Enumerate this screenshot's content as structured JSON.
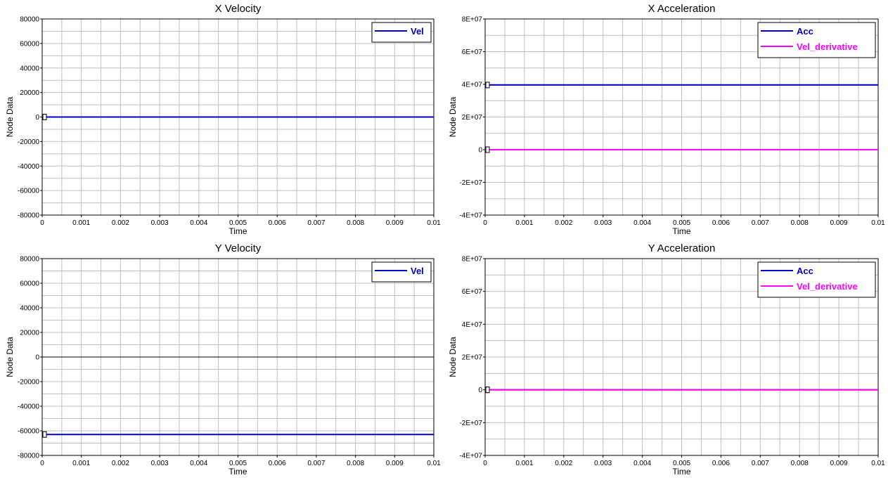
{
  "colors": {
    "blue": "#0000cc",
    "magenta": "#ff00ff",
    "grid": "#bfbfbf",
    "zero": "#000000"
  },
  "chart_data": [
    {
      "type": "line",
      "title": "X Velocity",
      "xlabel": "Time",
      "ylabel": "Node Data",
      "xlim": [
        0,
        0.01
      ],
      "ylim": [
        -80000,
        80000
      ],
      "xticks": [
        0,
        0.001,
        0.002,
        0.003,
        0.004,
        0.005,
        0.006,
        0.007,
        0.008,
        0.009,
        0.01
      ],
      "xtick_labels": [
        "0",
        "0.001",
        "0.002",
        "0.003",
        "0.004",
        "0.005",
        "0.006",
        "0.007",
        "0.008",
        "0.009",
        "0.01"
      ],
      "yticks": [
        -80000,
        -60000,
        -40000,
        -20000,
        0,
        20000,
        40000,
        60000,
        80000
      ],
      "ytick_labels": [
        "-80000",
        "-60000",
        "-40000",
        "-20000",
        "0",
        "20000",
        "40000",
        "60000",
        "80000"
      ],
      "grid": true,
      "legend": "top-right",
      "series": [
        {
          "name": "Vel",
          "color": "#0000cc",
          "x": [
            0,
            0.01
          ],
          "y": [
            0,
            0
          ]
        }
      ]
    },
    {
      "type": "line",
      "title": "X Acceleration",
      "xlabel": "Time",
      "ylabel": "Node Data",
      "xlim": [
        0,
        0.01
      ],
      "ylim": [
        -40000000,
        80000000
      ],
      "xticks": [
        0,
        0.001,
        0.002,
        0.003,
        0.004,
        0.005,
        0.006,
        0.007,
        0.008,
        0.009,
        0.01
      ],
      "xtick_labels": [
        "0",
        "0.001",
        "0.002",
        "0.003",
        "0.004",
        "0.005",
        "0.006",
        "0.007",
        "0.008",
        "0.009",
        "0.01"
      ],
      "yticks": [
        -40000000,
        -20000000,
        0,
        20000000,
        40000000,
        60000000,
        80000000
      ],
      "ytick_labels": [
        "-4E+07",
        "-2E+07",
        "0",
        "2E+07",
        "4E+07",
        "6E+07",
        "8E+07"
      ],
      "grid": true,
      "legend": "top-right",
      "series": [
        {
          "name": "Acc",
          "color": "#0000cc",
          "x": [
            0,
            0.01
          ],
          "y": [
            39600000,
            39600000
          ]
        },
        {
          "name": "Vel_derivative",
          "color": "#ff00ff",
          "x": [
            0,
            0.01
          ],
          "y": [
            0,
            0
          ]
        }
      ]
    },
    {
      "type": "line",
      "title": "Y Velocity",
      "xlabel": "Time",
      "ylabel": "Node Data",
      "xlim": [
        0,
        0.01
      ],
      "ylim": [
        -80000,
        80000
      ],
      "xticks": [
        0,
        0.001,
        0.002,
        0.003,
        0.004,
        0.005,
        0.006,
        0.007,
        0.008,
        0.009,
        0.01
      ],
      "xtick_labels": [
        "0",
        "0.001",
        "0.002",
        "0.003",
        "0.004",
        "0.005",
        "0.006",
        "0.007",
        "0.008",
        "0.009",
        "0.01"
      ],
      "yticks": [
        -80000,
        -60000,
        -40000,
        -20000,
        0,
        20000,
        40000,
        60000,
        80000
      ],
      "ytick_labels": [
        "-80000",
        "-60000",
        "-40000",
        "-20000",
        "0",
        "20000",
        "40000",
        "60000",
        "80000"
      ],
      "grid": true,
      "legend": "top-right",
      "series": [
        {
          "name": "Vel",
          "color": "#0000cc",
          "x": [
            0,
            0.01
          ],
          "y": [
            -63000,
            -63000
          ]
        }
      ]
    },
    {
      "type": "line",
      "title": "Y Acceleration",
      "xlabel": "Time",
      "ylabel": "Node Data",
      "xlim": [
        0,
        0.01
      ],
      "ylim": [
        -40000000,
        80000000
      ],
      "xticks": [
        0,
        0.001,
        0.002,
        0.003,
        0.004,
        0.005,
        0.006,
        0.007,
        0.008,
        0.009,
        0.01
      ],
      "xtick_labels": [
        "0",
        "0.001",
        "0.002",
        "0.003",
        "0.004",
        "0.005",
        "0.006",
        "0.007",
        "0.008",
        "0.009",
        "0.01"
      ],
      "yticks": [
        -40000000,
        -20000000,
        0,
        20000000,
        40000000,
        60000000,
        80000000
      ],
      "ytick_labels": [
        "-4E+07",
        "-2E+07",
        "0",
        "2E+07",
        "4E+07",
        "6E+07",
        "8E+07"
      ],
      "grid": true,
      "legend": "top-right",
      "series": [
        {
          "name": "Acc",
          "color": "#0000cc",
          "x": [
            0,
            0.01
          ],
          "y": [
            0,
            0
          ]
        },
        {
          "name": "Vel_derivative",
          "color": "#ff00ff",
          "x": [
            0,
            0.01
          ],
          "y": [
            0,
            0
          ]
        }
      ]
    }
  ]
}
